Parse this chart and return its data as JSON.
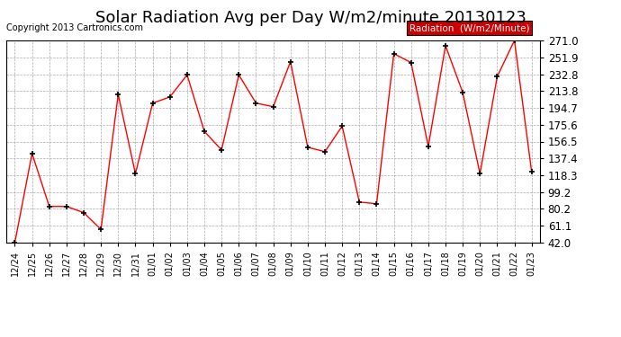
{
  "title": "Solar Radiation Avg per Day W/m2/minute 20130123",
  "copyright": "Copyright 2013 Cartronics.com",
  "legend_label": "Radiation  (W/m2/Minute)",
  "dates": [
    "12/24",
    "12/25",
    "12/26",
    "12/27",
    "12/28",
    "12/29",
    "12/30",
    "12/31",
    "01/01",
    "01/02",
    "01/03",
    "01/04",
    "01/05",
    "01/06",
    "01/07",
    "01/08",
    "01/09",
    "01/10",
    "01/11",
    "01/12",
    "01/13",
    "01/14",
    "01/15",
    "01/16",
    "01/17",
    "01/18",
    "01/19",
    "01/20",
    "01/21",
    "01/22",
    "01/23"
  ],
  "values": [
    42.0,
    143.0,
    83.0,
    83.0,
    76.0,
    57.0,
    210.0,
    120.0,
    200.0,
    207.0,
    232.0,
    168.0,
    147.0,
    232.0,
    200.0,
    196.0,
    247.0,
    150.0,
    145.0,
    174.0,
    88.0,
    86.0,
    256.0,
    246.0,
    151.0,
    265.0,
    212.0,
    120.0,
    230.0,
    271.0,
    122.0
  ],
  "ymin": 42.0,
  "ymax": 271.0,
  "yticks": [
    42.0,
    61.1,
    80.2,
    99.2,
    118.3,
    137.4,
    156.5,
    175.6,
    194.7,
    213.8,
    232.8,
    251.9,
    271.0
  ],
  "line_color": "red",
  "marker_color": "black",
  "bg_color": "#ffffff",
  "plot_bg_color": "#ffffff",
  "grid_color": "#aaaaaa",
  "title_fontsize": 13,
  "legend_bg": "#cc0000",
  "legend_fg": "#ffffff"
}
